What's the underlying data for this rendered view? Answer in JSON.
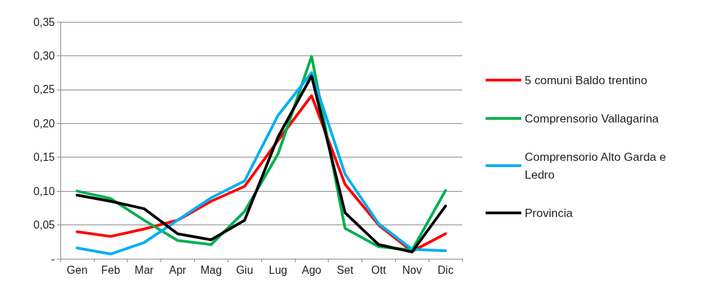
{
  "chart_data": {
    "type": "line",
    "categories": [
      "Gen",
      "Feb",
      "Mar",
      "Apr",
      "Mag",
      "Giu",
      "Lug",
      "Ago",
      "Set",
      "Ott",
      "Nov",
      "Dic"
    ],
    "series": [
      {
        "name": "5 comuni Baldo trentino",
        "color": "#ff0000",
        "values": [
          0.04,
          0.033,
          0.044,
          0.057,
          0.085,
          0.107,
          0.175,
          0.241,
          0.11,
          0.05,
          0.011,
          0.037
        ]
      },
      {
        "name": "Comprensorio Vallagarina",
        "color": "#00b050",
        "values": [
          0.1,
          0.089,
          0.057,
          0.027,
          0.021,
          0.07,
          0.155,
          0.299,
          0.045,
          0.018,
          0.013,
          0.101
        ]
      },
      {
        "name": "Comprensorio Alto Garda e Ledro",
        "color": "#00b0f0",
        "values": [
          0.016,
          0.007,
          0.024,
          0.057,
          0.09,
          0.115,
          0.212,
          0.275,
          0.125,
          0.052,
          0.014,
          0.012
        ]
      },
      {
        "name": "Provincia",
        "color": "#000000",
        "values": [
          0.094,
          0.085,
          0.074,
          0.037,
          0.028,
          0.057,
          0.18,
          0.27,
          0.068,
          0.021,
          0.01,
          0.078
        ]
      }
    ],
    "ylim": [
      0,
      0.35
    ],
    "yticks": [
      {
        "value": 0,
        "label": "-"
      },
      {
        "value": 0.05,
        "label": "0,05"
      },
      {
        "value": 0.1,
        "label": "0,10"
      },
      {
        "value": 0.15,
        "label": "0,15"
      },
      {
        "value": 0.2,
        "label": "0,20"
      },
      {
        "value": 0.25,
        "label": "0,25"
      },
      {
        "value": 0.3,
        "label": "0,30"
      },
      {
        "value": 0.35,
        "label": "0,35"
      }
    ],
    "grid": "y",
    "legend": "right",
    "marker": "none",
    "line_style": "solid"
  }
}
